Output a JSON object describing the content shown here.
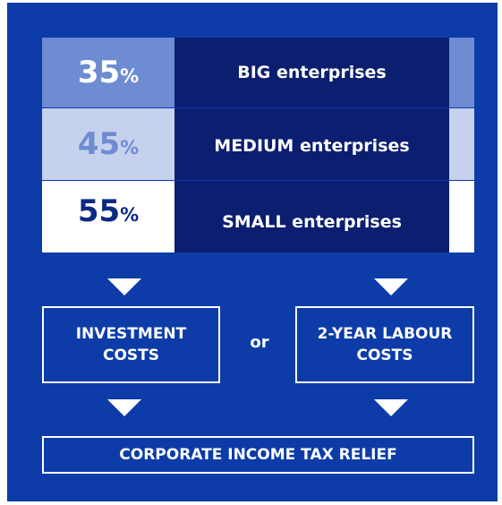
{
  "tiers": [
    {
      "value": "35",
      "unit": "%",
      "label": "BIG enterprises"
    },
    {
      "value": "45",
      "unit": "%",
      "label": "MEDIUM enterprises"
    },
    {
      "value": "55",
      "unit": "%",
      "label": "SMALL enterprises"
    }
  ],
  "options": {
    "left": "INVESTMENT COSTS",
    "connector": "or",
    "right": "2-YEAR LABOUR COSTS"
  },
  "result": "CORPORATE INCOME TAX RELIEF"
}
